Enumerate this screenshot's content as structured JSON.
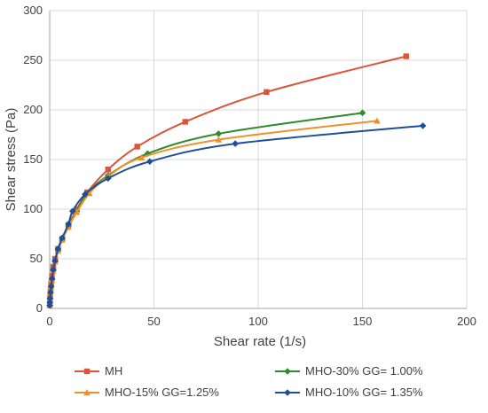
{
  "chart_data": {
    "type": "line",
    "title": "",
    "xlabel": "Shear rate (1/s)",
    "ylabel": "Shear stress (Pa)",
    "xlim": [
      0,
      200
    ],
    "ylim": [
      0,
      300
    ],
    "xticks": [
      0,
      50,
      100,
      150,
      200
    ],
    "yticks": [
      0,
      50,
      100,
      150,
      200,
      250,
      300
    ],
    "grid": "vertical and horizontal gridlines",
    "legend_position": "bottom",
    "series": [
      {
        "name": "MH",
        "color": "#D9553B",
        "marker": "square",
        "points": [
          [
            0.05,
            4
          ],
          [
            0.1,
            8
          ],
          [
            0.2,
            12
          ],
          [
            0.4,
            18
          ],
          [
            0.7,
            25
          ],
          [
            1.1,
            33
          ],
          [
            1.7,
            42
          ],
          [
            2.6,
            50
          ],
          [
            4,
            60
          ],
          [
            6,
            70
          ],
          [
            9,
            84
          ],
          [
            13,
            100
          ],
          [
            18,
            117
          ],
          [
            28,
            140
          ],
          [
            42,
            163
          ],
          [
            65,
            188
          ],
          [
            104,
            218
          ],
          [
            171,
            254
          ]
        ]
      },
      {
        "name": "MHO-30% GG= 1.00%",
        "color": "#2E8B2E",
        "marker": "diamond",
        "points": [
          [
            0.05,
            3
          ],
          [
            0.1,
            6
          ],
          [
            0.2,
            10
          ],
          [
            0.4,
            16
          ],
          [
            0.7,
            22
          ],
          [
            1.1,
            29
          ],
          [
            1.7,
            38
          ],
          [
            2.6,
            47
          ],
          [
            4,
            58
          ],
          [
            6,
            69
          ],
          [
            9,
            83
          ],
          [
            13,
            98
          ],
          [
            18,
            116
          ],
          [
            28,
            134
          ],
          [
            47,
            156
          ],
          [
            81,
            176
          ],
          [
            150,
            197
          ]
        ]
      },
      {
        "name": "MHO-15% GG=1.25%",
        "color": "#F0902B",
        "marker": "triangle",
        "points": [
          [
            0.05,
            3
          ],
          [
            0.1,
            6
          ],
          [
            0.2,
            10
          ],
          [
            0.4,
            16
          ],
          [
            0.7,
            22
          ],
          [
            1.1,
            29
          ],
          [
            1.7,
            38
          ],
          [
            2.6,
            47
          ],
          [
            4,
            58
          ],
          [
            6,
            69
          ],
          [
            9,
            82
          ],
          [
            13,
            97
          ],
          [
            19,
            116
          ],
          [
            28,
            133
          ],
          [
            44,
            152
          ],
          [
            81,
            170
          ],
          [
            157,
            189
          ]
        ]
      },
      {
        "name": "MHO-10% GG= 1.35%",
        "color": "#1F4E9A",
        "marker": "diamond",
        "points": [
          [
            0.05,
            3
          ],
          [
            0.1,
            6
          ],
          [
            0.2,
            10
          ],
          [
            0.4,
            16
          ],
          [
            0.7,
            22
          ],
          [
            1.1,
            30
          ],
          [
            1.7,
            39
          ],
          [
            2.6,
            48
          ],
          [
            4,
            60
          ],
          [
            6,
            71
          ],
          [
            9,
            85
          ],
          [
            11,
            98
          ],
          [
            17,
            115
          ],
          [
            28,
            131
          ],
          [
            48,
            148
          ],
          [
            89,
            166
          ],
          [
            179,
            184
          ]
        ]
      }
    ]
  }
}
